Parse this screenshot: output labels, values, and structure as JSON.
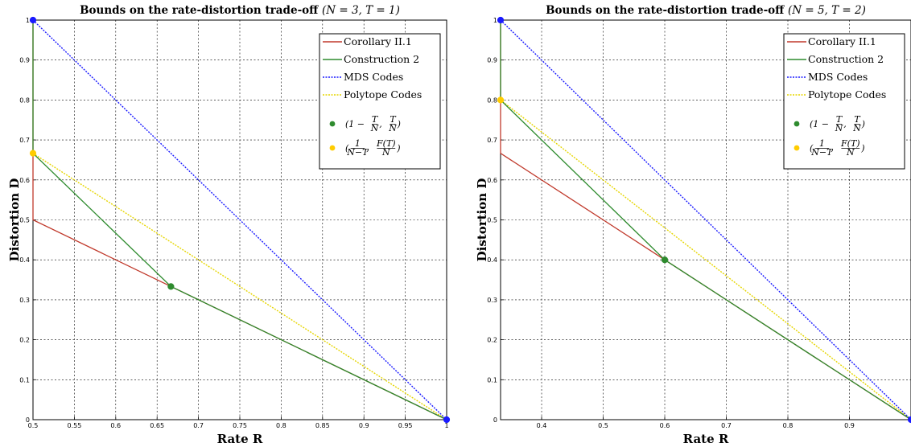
{
  "chart_data": [
    {
      "type": "line",
      "title": "Bounds on the rate-distortion trade-off",
      "title_params": "(N = 3,  T = 1)",
      "xlabel": "Rate R",
      "ylabel": "Distortion D",
      "xlim": [
        0.5,
        1.0
      ],
      "ylim": [
        0,
        1
      ],
      "xticks": [
        0.5,
        0.55,
        0.6,
        0.65,
        0.7,
        0.75,
        0.8,
        0.85,
        0.9,
        0.95,
        1.0
      ],
      "xtick_labels": [
        "0.5",
        "0.55",
        "0.6",
        "0.65",
        "0.7",
        "0.75",
        "0.8",
        "0.85",
        "0.9",
        "0.95",
        "1"
      ],
      "yticks": [
        0,
        0.1,
        0.2,
        0.3,
        0.4,
        0.5,
        0.6,
        0.7,
        0.8,
        0.9,
        1.0
      ],
      "ytick_labels": [
        "0",
        "0.1",
        "0.2",
        "0.3",
        "0.4",
        "0.5",
        "0.6",
        "0.7",
        "0.8",
        "0.9",
        "1"
      ],
      "grid": true,
      "legend_position": "top-right",
      "series": [
        {
          "name": "Corollary II.1",
          "color": "#c0392b",
          "dash": "solid",
          "x": [
            0.5,
            0.5,
            0.6667,
            1.0
          ],
          "y": [
            1.0,
            0.5,
            0.3333,
            0
          ]
        },
        {
          "name": "Construction 2",
          "color": "#2e8b2e",
          "dash": "solid",
          "x": [
            0.5,
            0.5,
            0.6667,
            1.0
          ],
          "y": [
            1.0,
            0.6667,
            0.3333,
            0
          ]
        },
        {
          "name": "MDS Codes",
          "color": "#1a1aff",
          "dash": "dotted",
          "x": [
            0.5,
            1.0
          ],
          "y": [
            1.0,
            0
          ]
        },
        {
          "name": "Polytope Codes",
          "color": "#e6d600",
          "dash": "dotted",
          "x": [
            0.5,
            1.0
          ],
          "y": [
            0.6667,
            0
          ]
        }
      ],
      "markers": [
        {
          "legend": "(1 − T/N, T/N)",
          "color": "#2e8b2e",
          "x": 0.6667,
          "y": 0.3333
        },
        {
          "legend": "(1/(N−T), F(T)/N)",
          "color": "#ffcc00",
          "x": 0.5,
          "y": 0.6667
        },
        {
          "legend": "",
          "color": "#1a1aff",
          "x": 0.5,
          "y": 1.0
        },
        {
          "legend": "",
          "color": "#1a1aff",
          "x": 1.0,
          "y": 0
        }
      ]
    },
    {
      "type": "line",
      "title": "Bounds on the rate-distortion trade-off",
      "title_params": "(N = 5,  T = 2)",
      "xlabel": "Rate R",
      "ylabel": "Distortion D",
      "xlim": [
        0.3333,
        1.0
      ],
      "ylim": [
        0,
        1
      ],
      "xticks": [
        0.4,
        0.5,
        0.6,
        0.7,
        0.8,
        0.9
      ],
      "xtick_labels": [
        "0.4",
        "0.5",
        "0.6",
        "0.7",
        "0.8",
        "0.9"
      ],
      "yticks": [
        0,
        0.1,
        0.2,
        0.3,
        0.4,
        0.5,
        0.6,
        0.7,
        0.8,
        0.9,
        1.0
      ],
      "ytick_labels": [
        "0",
        "0.1",
        "0.2",
        "0.3",
        "0.4",
        "0.5",
        "0.6",
        "0.7",
        "0.8",
        "0.9",
        "1"
      ],
      "grid": true,
      "legend_position": "top-right",
      "series": [
        {
          "name": "Corollary II.1",
          "color": "#c0392b",
          "dash": "solid",
          "x": [
            0.3333,
            0.3333,
            0.6,
            1.0
          ],
          "y": [
            1.0,
            0.6667,
            0.4,
            0
          ]
        },
        {
          "name": "Construction 2",
          "color": "#2e8b2e",
          "dash": "solid",
          "x": [
            0.3333,
            0.3333,
            0.6,
            1.0
          ],
          "y": [
            1.0,
            0.8,
            0.4,
            0
          ]
        },
        {
          "name": "MDS Codes",
          "color": "#1a1aff",
          "dash": "dotted",
          "x": [
            0.3333,
            1.0
          ],
          "y": [
            1.0,
            0
          ]
        },
        {
          "name": "Polytope Codes",
          "color": "#e6d600",
          "dash": "dotted",
          "x": [
            0.3333,
            1.0
          ],
          "y": [
            0.8,
            0
          ]
        }
      ],
      "markers": [
        {
          "legend": "(1 − T/N, T/N)",
          "color": "#2e8b2e",
          "x": 0.6,
          "y": 0.4
        },
        {
          "legend": "(1/(N−T), F(T)/N)",
          "color": "#ffcc00",
          "x": 0.3333,
          "y": 0.8
        },
        {
          "legend": "",
          "color": "#1a1aff",
          "x": 0.3333,
          "y": 1.0
        },
        {
          "legend": "",
          "color": "#1a1aff",
          "x": 1.0,
          "y": 0
        }
      ]
    }
  ]
}
